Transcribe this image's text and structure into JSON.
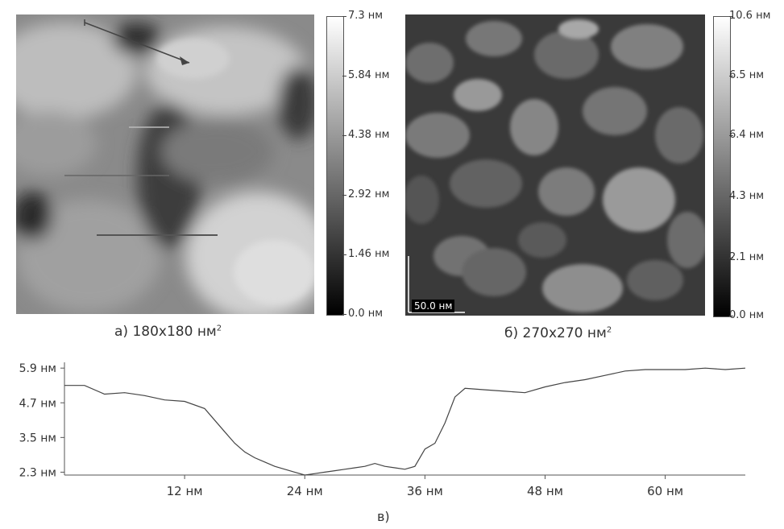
{
  "panel_a": {
    "colorbar_labels": [
      "7.3 нм",
      "5.84 нм",
      "4.38 нм",
      "2.92 нм",
      "1.46 нм",
      "0.0 нм"
    ],
    "caption_prefix": "а) 180x180 нм",
    "caption_sup": "2"
  },
  "panel_b": {
    "colorbar_labels": [
      "10.6 нм",
      "6.5 нм",
      "6.4 нм",
      "4.3 нм",
      "2.1 нм",
      "0.0 нм"
    ],
    "scalebar_label": "50.0 нм",
    "caption_prefix": "б) 270x270 нм",
    "caption_sup": "2"
  },
  "profile": {
    "caption": "в)",
    "y_tick_labels": [
      "5.9 нм",
      "4.7 нм",
      "3.5 нм",
      "2.3 нм"
    ],
    "x_tick_labels": [
      "12 нм",
      "24 нм",
      "36 нм",
      "48 нм",
      "60 нм"
    ]
  },
  "chart_data": {
    "type": "line",
    "xlim": [
      0,
      68
    ],
    "ylim": [
      2.2,
      6.1
    ],
    "y_ticks": [
      5.9,
      4.7,
      3.5,
      2.3
    ],
    "x_ticks": [
      12,
      24,
      36,
      48,
      60
    ],
    "x": [
      0,
      2,
      4,
      6,
      8,
      10,
      12,
      14,
      15,
      16,
      17,
      18,
      19,
      20,
      21,
      22,
      23,
      24,
      25,
      26,
      27,
      28,
      29,
      30,
      31,
      32,
      33,
      34,
      35,
      36,
      37,
      38,
      39,
      40,
      42,
      44,
      46,
      48,
      50,
      52,
      54,
      56,
      58,
      60,
      62,
      64,
      66,
      68
    ],
    "y": [
      5.3,
      5.3,
      5.0,
      5.05,
      4.95,
      4.8,
      4.75,
      4.5,
      4.1,
      3.7,
      3.3,
      3.0,
      2.8,
      2.65,
      2.5,
      2.4,
      2.3,
      2.2,
      2.25,
      2.3,
      2.35,
      2.4,
      2.45,
      2.5,
      2.6,
      2.5,
      2.45,
      2.4,
      2.5,
      3.1,
      3.3,
      4.0,
      4.9,
      5.2,
      5.15,
      5.1,
      5.05,
      5.25,
      5.4,
      5.5,
      5.65,
      5.8,
      5.85,
      5.85,
      5.85,
      5.9,
      5.85,
      5.9
    ]
  }
}
